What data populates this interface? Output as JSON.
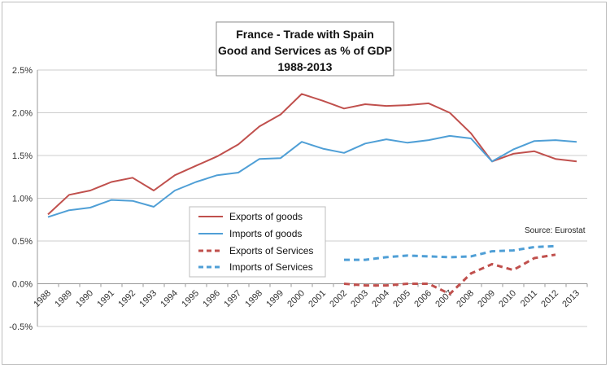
{
  "chart_data": {
    "type": "line",
    "title_lines": [
      "France - Trade with Spain",
      "Good and Services as % of GDP",
      "1988-2013"
    ],
    "source": "Source: Eurostat",
    "x": [
      "1988",
      "1989",
      "1990",
      "1991",
      "1992",
      "1993",
      "1994",
      "1995",
      "1996",
      "1997",
      "1998",
      "1999",
      "2000",
      "2001",
      "2002",
      "2003",
      "2004",
      "2005",
      "2006",
      "2007",
      "2008",
      "2009",
      "2010",
      "2011",
      "2012",
      "2013"
    ],
    "ylim": [
      -0.5,
      2.5
    ],
    "yticks": [
      "2.5%",
      "2.0%",
      "1.5%",
      "1.0%",
      "0.5%",
      "0.0%",
      "-0.5%"
    ],
    "ytick_values": [
      2.5,
      2.0,
      1.5,
      1.0,
      0.5,
      0.0,
      -0.5
    ],
    "grid": "horizontal",
    "legend_position": "center-left",
    "series": [
      {
        "name": "Exports of goods",
        "color": "#c0504d",
        "dash": "solid",
        "values": [
          0.81,
          1.04,
          1.09,
          1.19,
          1.24,
          1.09,
          1.27,
          1.38,
          1.49,
          1.63,
          1.84,
          1.98,
          2.22,
          2.14,
          2.05,
          2.1,
          2.08,
          2.09,
          2.11,
          2.0,
          1.76,
          1.43,
          1.52,
          1.55,
          1.46,
          1.43
        ]
      },
      {
        "name": "Imports of goods",
        "color": "#4f9fd6",
        "dash": "solid",
        "values": [
          0.78,
          0.86,
          0.89,
          0.98,
          0.97,
          0.9,
          1.09,
          1.19,
          1.27,
          1.3,
          1.46,
          1.47,
          1.66,
          1.58,
          1.53,
          1.64,
          1.69,
          1.65,
          1.68,
          1.73,
          1.7,
          1.43,
          1.57,
          1.67,
          1.68,
          1.66
        ]
      },
      {
        "name": "Exports of Services",
        "color": "#c0504d",
        "dash": "dashed",
        "values": [
          null,
          null,
          null,
          null,
          null,
          null,
          null,
          null,
          null,
          null,
          null,
          null,
          null,
          null,
          0.0,
          -0.02,
          -0.02,
          0.0,
          0.0,
          -0.12,
          0.12,
          0.23,
          0.16,
          0.3,
          0.34,
          null
        ]
      },
      {
        "name": "Imports of Services",
        "color": "#4f9fd6",
        "dash": "dashed",
        "values": [
          null,
          null,
          null,
          null,
          null,
          null,
          null,
          null,
          null,
          null,
          null,
          null,
          null,
          null,
          0.28,
          0.28,
          0.31,
          0.33,
          0.32,
          0.31,
          0.32,
          0.38,
          0.39,
          0.43,
          0.44,
          null
        ]
      }
    ]
  }
}
